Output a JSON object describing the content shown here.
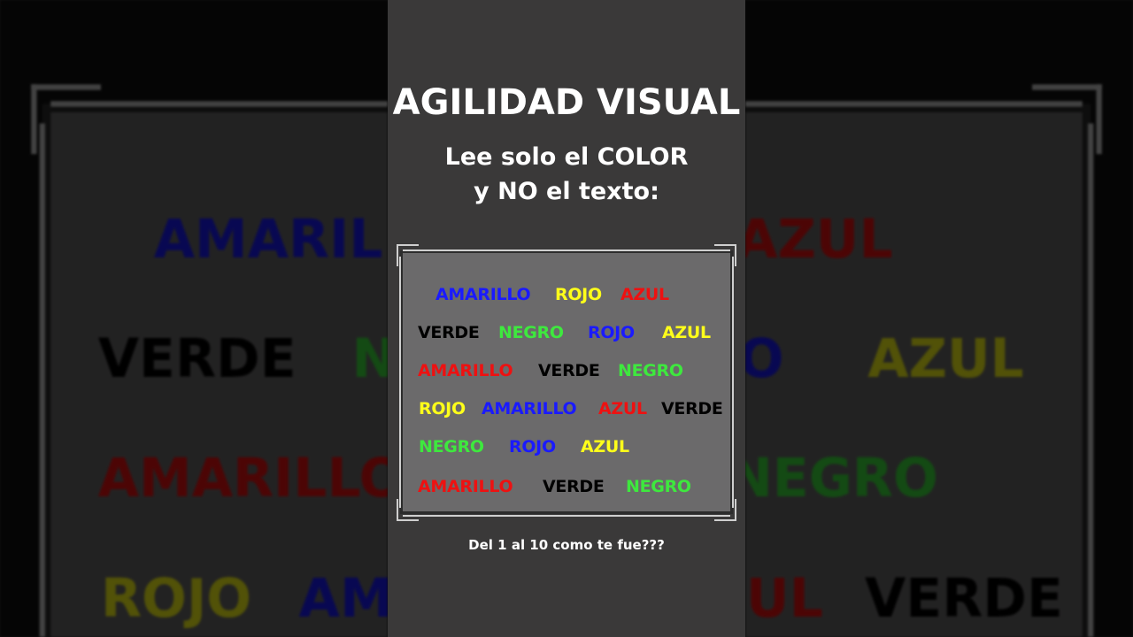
{
  "header": {
    "title": "AGILIDAD VISUAL",
    "subtitle_line1": "Lee solo el COLOR",
    "subtitle_line2": "y NO el texto:"
  },
  "colors": {
    "blue": "#1a1aff",
    "yellow": "#ffff1a",
    "red": "#ee1111",
    "black": "#000000",
    "green": "#3ee83e",
    "panel": "#6b6a6b",
    "column": "#3a3939"
  },
  "rows": [
    [
      {
        "text": "AMARILLO",
        "color": "#1a1aff"
      },
      {
        "text": "ROJO",
        "color": "#ffff1a"
      },
      {
        "text": "AZUL",
        "color": "#ee1111"
      }
    ],
    [
      {
        "text": "VERDE",
        "color": "#000000"
      },
      {
        "text": "NEGRO",
        "color": "#3ee83e"
      },
      {
        "text": "ROJO",
        "color": "#1a1aff"
      },
      {
        "text": "AZUL",
        "color": "#ffff1a"
      }
    ],
    [
      {
        "text": "AMARILLO",
        "color": "#ee1111"
      },
      {
        "text": "VERDE",
        "color": "#000000"
      },
      {
        "text": "NEGRO",
        "color": "#3ee83e"
      }
    ],
    [
      {
        "text": "ROJO",
        "color": "#ffff1a"
      },
      {
        "text": "AMARILLO",
        "color": "#1a1aff"
      },
      {
        "text": "AZUL",
        "color": "#ee1111"
      },
      {
        "text": "VERDE",
        "color": "#000000"
      }
    ],
    [
      {
        "text": "NEGRO",
        "color": "#3ee83e"
      },
      {
        "text": "ROJO",
        "color": "#1a1aff"
      },
      {
        "text": "AZUL",
        "color": "#ffff1a"
      }
    ],
    [
      {
        "text": "AMARILLO",
        "color": "#ee1111"
      },
      {
        "text": "VERDE",
        "color": "#000000"
      },
      {
        "text": "NEGRO",
        "color": "#3ee83e"
      }
    ]
  ],
  "footer": "Del 1 al 10 como te fue???"
}
